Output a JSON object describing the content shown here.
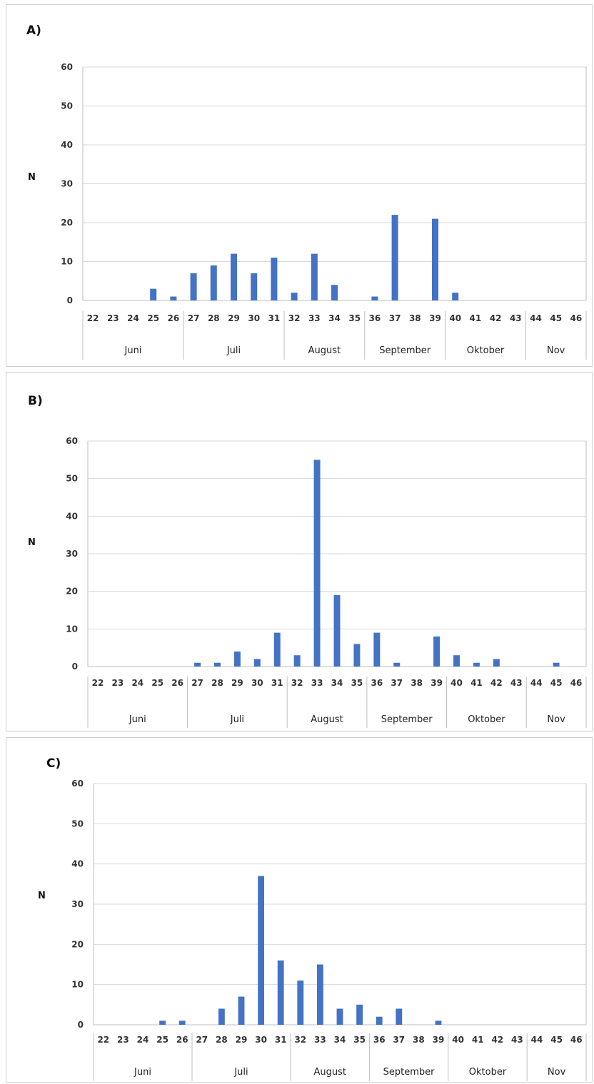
{
  "colors": {
    "bar": "#4472c4",
    "grid": "#d9d9d9",
    "axis": "#bfbfbf"
  },
  "chart_data": [
    {
      "type": "bar",
      "panel_label": "A)",
      "ylabel": "N",
      "ylim": [
        0,
        60
      ],
      "yticks": [
        "0",
        "10",
        "20",
        "30",
        "40",
        "50",
        "60"
      ],
      "categories": [
        "22",
        "23",
        "24",
        "25",
        "26",
        "27",
        "28",
        "29",
        "30",
        "31",
        "32",
        "33",
        "34",
        "35",
        "36",
        "37",
        "38",
        "39",
        "40",
        "41",
        "42",
        "43",
        "44",
        "45",
        "46"
      ],
      "values": [
        0,
        0,
        0,
        3,
        1,
        7,
        9,
        12,
        7,
        11,
        2,
        12,
        4,
        0,
        1,
        22,
        0,
        21,
        2,
        0,
        0,
        0,
        0,
        0,
        0
      ],
      "months": [
        {
          "label": "Juni",
          "start": 0,
          "end": 4
        },
        {
          "label": "Juli",
          "start": 5,
          "end": 9
        },
        {
          "label": "August",
          "start": 10,
          "end": 13
        },
        {
          "label": "September",
          "start": 14,
          "end": 17
        },
        {
          "label": "Oktober",
          "start": 18,
          "end": 21
        },
        {
          "label": "Nov",
          "start": 22,
          "end": 24
        }
      ],
      "grid": true
    },
    {
      "type": "bar",
      "panel_label": "B)",
      "ylabel": "N",
      "ylim": [
        0,
        60
      ],
      "yticks": [
        "0",
        "10",
        "20",
        "30",
        "40",
        "50",
        "60"
      ],
      "categories": [
        "22",
        "23",
        "24",
        "25",
        "26",
        "27",
        "28",
        "29",
        "30",
        "31",
        "32",
        "33",
        "34",
        "35",
        "36",
        "37",
        "38",
        "39",
        "40",
        "41",
        "42",
        "43",
        "44",
        "45",
        "46"
      ],
      "values": [
        0,
        0,
        0,
        0,
        0,
        1,
        1,
        4,
        2,
        9,
        3,
        55,
        19,
        6,
        9,
        1,
        0,
        8,
        3,
        1,
        2,
        0,
        0,
        1,
        0
      ],
      "months": [
        {
          "label": "Juni",
          "start": 0,
          "end": 4
        },
        {
          "label": "Juli",
          "start": 5,
          "end": 9
        },
        {
          "label": "August",
          "start": 10,
          "end": 13
        },
        {
          "label": "September",
          "start": 14,
          "end": 17
        },
        {
          "label": "Oktober",
          "start": 18,
          "end": 21
        },
        {
          "label": "Nov",
          "start": 22,
          "end": 24
        }
      ],
      "grid": true
    },
    {
      "type": "bar",
      "panel_label": "C)",
      "ylabel": "N",
      "ylim": [
        0,
        60
      ],
      "yticks": [
        "0",
        "10",
        "20",
        "30",
        "40",
        "50",
        "60"
      ],
      "categories": [
        "22",
        "23",
        "24",
        "25",
        "26",
        "27",
        "28",
        "29",
        "30",
        "31",
        "32",
        "33",
        "34",
        "35",
        "36",
        "37",
        "38",
        "39",
        "40",
        "41",
        "42",
        "43",
        "44",
        "45",
        "46"
      ],
      "values": [
        0,
        0,
        0,
        1,
        1,
        0,
        4,
        7,
        37,
        16,
        11,
        15,
        4,
        5,
        2,
        4,
        0,
        1,
        0,
        0,
        0,
        0,
        0,
        0,
        0
      ],
      "months": [
        {
          "label": "Juni",
          "start": 0,
          "end": 4
        },
        {
          "label": "Juli",
          "start": 5,
          "end": 9
        },
        {
          "label": "August",
          "start": 10,
          "end": 13
        },
        {
          "label": "September",
          "start": 14,
          "end": 17
        },
        {
          "label": "Oktober",
          "start": 18,
          "end": 21
        },
        {
          "label": "Nov",
          "start": 22,
          "end": 24
        }
      ],
      "grid": true
    }
  ]
}
